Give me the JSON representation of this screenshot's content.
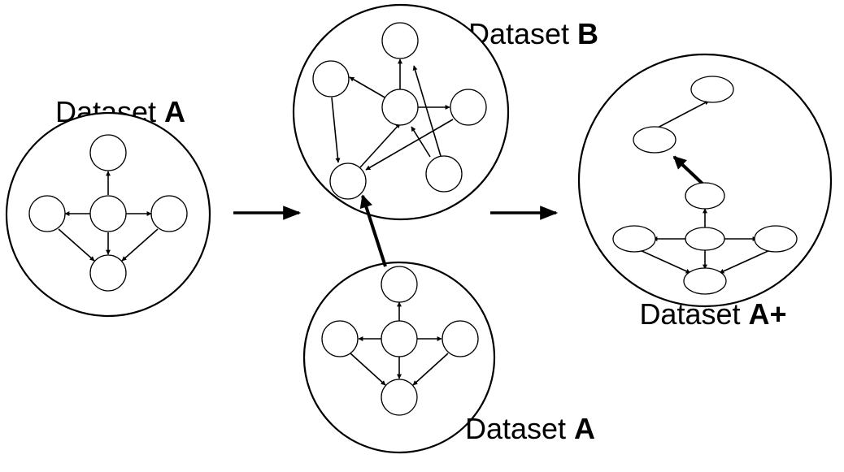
{
  "labels": {
    "left_prefix": "Dataset ",
    "left_bold": "A",
    "top_prefix": "Dataset ",
    "top_bold": "B",
    "bottom_prefix": "Dataset ",
    "bottom_bold": "A",
    "result_prefix": "Dataset ",
    "result_bold": "A+"
  }
}
